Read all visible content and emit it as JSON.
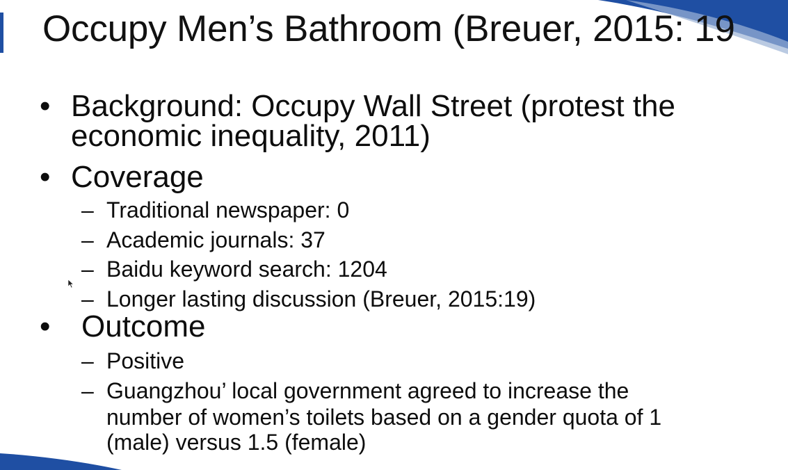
{
  "slide": {
    "title": "Occupy Men’s Bathroom (Breuer, 2015: 19",
    "bullets": [
      {
        "label": "Background: Occupy Wall Street (protest the",
        "label_cont": "economic inequality, 2011)"
      },
      {
        "label": "Coverage",
        "sub": [
          "Traditional newspaper: 0",
          "Academic journals: 37",
          "Baidu keyword search: 1204",
          "Longer lasting discussion (Breuer, 2015:19)"
        ]
      },
      {
        "label": "Outcome",
        "sub": [
          "Positive",
          "Guangzhou’ local government agreed to increase the",
          "number of women’s toilets based on a gender quota of 1",
          "(male) versus 1.5 (female)"
        ]
      }
    ],
    "bullet_glyph": "•",
    "dash_glyph": "–"
  },
  "theme": {
    "accent": "#1f4fa3",
    "swoosh_light": "#9db3d6"
  }
}
